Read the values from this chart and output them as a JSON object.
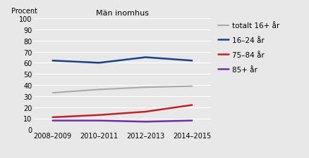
{
  "title": "Män inomhus",
  "ylabel": "Procent",
  "x_labels": [
    "2008–2009",
    "2010–2011",
    "2012–2013",
    "2014–2015"
  ],
  "x_positions": [
    0,
    1,
    2,
    3
  ],
  "series": [
    {
      "label": "totalt 16+ år",
      "values": [
        33,
        36,
        38,
        39
      ],
      "color": "#aaaaaa",
      "linewidth": 1.5,
      "linestyle": "-"
    },
    {
      "label": "16–24 år",
      "values": [
        62,
        60,
        65,
        62
      ],
      "color": "#1a3f8f",
      "linewidth": 1.8,
      "linestyle": "-"
    },
    {
      "label": "75–84 år",
      "values": [
        11,
        13,
        16,
        22
      ],
      "color": "#c0202a",
      "linewidth": 1.8,
      "linestyle": "-"
    },
    {
      "label": "85+ år",
      "values": [
        8,
        8,
        7,
        8
      ],
      "color": "#7030a0",
      "linewidth": 1.8,
      "linestyle": "-"
    }
  ],
  "ylim": [
    0,
    100
  ],
  "yticks": [
    0,
    10,
    20,
    30,
    40,
    50,
    60,
    70,
    80,
    90,
    100
  ],
  "background_color": "#e8e8e8",
  "plot_area_color": "#e8e8e8",
  "title_fontsize": 8,
  "axis_label_fontsize": 7,
  "tick_fontsize": 7,
  "legend_fontsize": 7.5
}
